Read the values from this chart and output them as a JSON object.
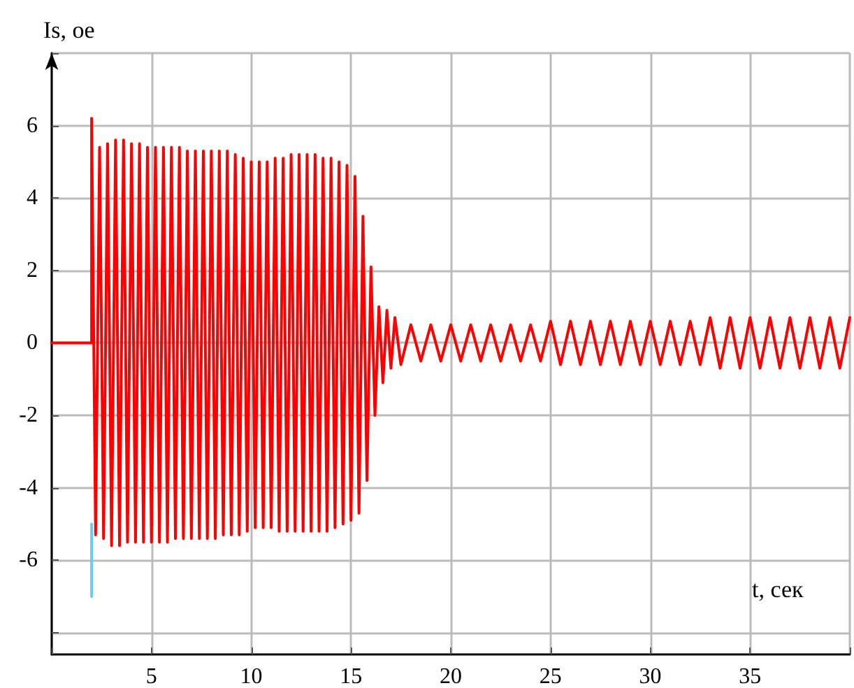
{
  "chart_data": {
    "type": "line",
    "xlabel": "t, сек",
    "ylabel": "Is, oe",
    "xlim": [
      0,
      40
    ],
    "xticks": [
      {
        "value": 0,
        "label": null
      },
      5,
      10,
      15,
      20,
      25,
      30,
      35,
      {
        "value": 40,
        "label": null
      }
    ],
    "ylim": [
      -8.6,
      8
    ],
    "yticks": [
      {
        "value": -8,
        "label": null
      },
      -6,
      -4,
      -2,
      0,
      2,
      4,
      6,
      {
        "value": 8,
        "label": null
      }
    ],
    "grid": true,
    "marker": "none",
    "line_style": "solid",
    "series": [
      {
        "color": "#66ccff",
        "x": [
          2,
          2
        ],
        "values": [
          -5,
          -7
        ]
      },
      {
        "color": "#ff0000",
        "x": [
          0,
          2,
          2,
          2.2,
          2.4,
          2.6,
          2.8,
          3.0,
          3.2,
          3.4,
          3.6,
          3.8,
          4.0,
          4.2,
          4.4,
          4.6,
          4.8,
          5.0,
          5.2,
          5.4,
          5.6,
          5.8,
          6.0,
          6.2,
          6.4,
          6.6,
          6.8,
          7.0,
          7.2,
          7.4,
          7.6,
          7.8,
          8.0,
          8.2,
          8.4,
          8.6,
          8.8,
          9.0,
          9.2,
          9.4,
          9.6,
          9.8,
          10.0,
          10.2,
          10.4,
          10.6,
          10.8,
          11.0,
          11.2,
          11.4,
          11.6,
          11.8,
          12.0,
          12.2,
          12.4,
          12.6,
          12.8,
          13.0,
          13.2,
          13.4,
          13.6,
          13.8,
          14.0,
          14.2,
          14.4,
          14.6,
          14.8,
          15.0,
          15.2,
          15.4,
          15.6,
          15.8,
          16.0,
          16.2,
          16.4,
          16.6,
          16.8,
          17.0,
          17.2,
          17.5,
          18,
          18.5,
          19,
          19.5,
          20,
          20.5,
          21,
          21.5,
          22,
          22.5,
          23,
          23.5,
          24,
          24.5,
          25,
          25.5,
          26,
          26.5,
          27,
          27.5,
          28,
          28.5,
          29,
          29.5,
          30,
          30.5,
          31,
          31.5,
          32,
          32.5,
          33,
          33.5,
          34,
          34.5,
          35,
          35.5,
          36,
          36.5,
          37,
          37.5,
          38,
          38.5,
          39,
          39.5,
          40
        ],
        "values": [
          0,
          0,
          6.2,
          -5.3,
          5.4,
          -5.4,
          5.5,
          -5.6,
          5.6,
          -5.6,
          5.6,
          -5.5,
          5.5,
          -5.5,
          5.5,
          -5.5,
          5.4,
          -5.5,
          5.4,
          -5.5,
          5.4,
          -5.5,
          5.4,
          -5.4,
          5.4,
          -5.4,
          5.3,
          -5.4,
          5.3,
          -5.4,
          5.3,
          -5.4,
          5.3,
          -5.4,
          5.3,
          -5.3,
          5.3,
          -5.3,
          5.2,
          -5.3,
          5.1,
          -5.2,
          5.0,
          -5.1,
          5.0,
          -5.1,
          5.0,
          -5.1,
          5.1,
          -5.2,
          5.1,
          -5.2,
          5.2,
          -5.2,
          5.2,
          -5.2,
          5.2,
          -5.2,
          5.2,
          -5.2,
          5.1,
          -5.2,
          5.1,
          -5.1,
          5.0,
          -5.0,
          4.9,
          -4.9,
          4.6,
          -4.7,
          3.5,
          -3.8,
          2.1,
          -2.0,
          1.0,
          -1.1,
          0.9,
          -0.7,
          0.7,
          -0.6,
          0.5,
          -0.5,
          0.5,
          -0.5,
          0.5,
          -0.5,
          0.5,
          -0.5,
          0.5,
          -0.5,
          0.5,
          -0.5,
          0.5,
          -0.5,
          0.6,
          -0.6,
          0.6,
          -0.6,
          0.6,
          -0.6,
          0.6,
          -0.6,
          0.6,
          -0.6,
          0.6,
          -0.6,
          0.6,
          -0.6,
          0.6,
          -0.6,
          0.7,
          -0.7,
          0.7,
          -0.7,
          0.7,
          -0.7,
          0.7,
          -0.7,
          0.7,
          -0.7,
          0.7,
          -0.7,
          0.7,
          -0.7,
          0.7
        ]
      }
    ]
  }
}
